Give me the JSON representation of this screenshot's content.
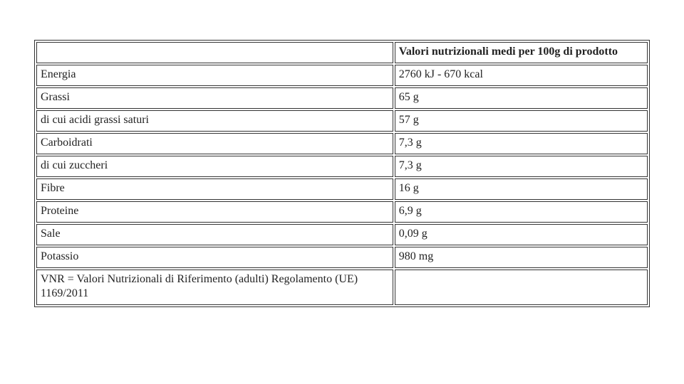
{
  "table": {
    "header": {
      "c1": "",
      "c2": "Valori nutrizionali medi per 100g di prodotto"
    },
    "rows": [
      {
        "label": "Energia",
        "value": "2760 kJ - 670 kcal"
      },
      {
        "label": "Grassi",
        "value": "65 g"
      },
      {
        "label": "di cui acidi grassi saturi",
        "value": "57 g"
      },
      {
        "label": "Carboidrati",
        "value": "7,3 g"
      },
      {
        "label": "di cui zuccheri",
        "value": "7,3 g"
      },
      {
        "label": "Fibre",
        "value": "16 g"
      },
      {
        "label": "Proteine",
        "value": "6,9 g"
      },
      {
        "label": "Sale",
        "value": "0,09 g"
      },
      {
        "label": "Potassio",
        "value": "980 mg"
      },
      {
        "label": "VNR = Valori Nutrizionali di Riferimento (adulti) Regolamento (UE) 1169/2011",
        "value": ""
      }
    ]
  }
}
